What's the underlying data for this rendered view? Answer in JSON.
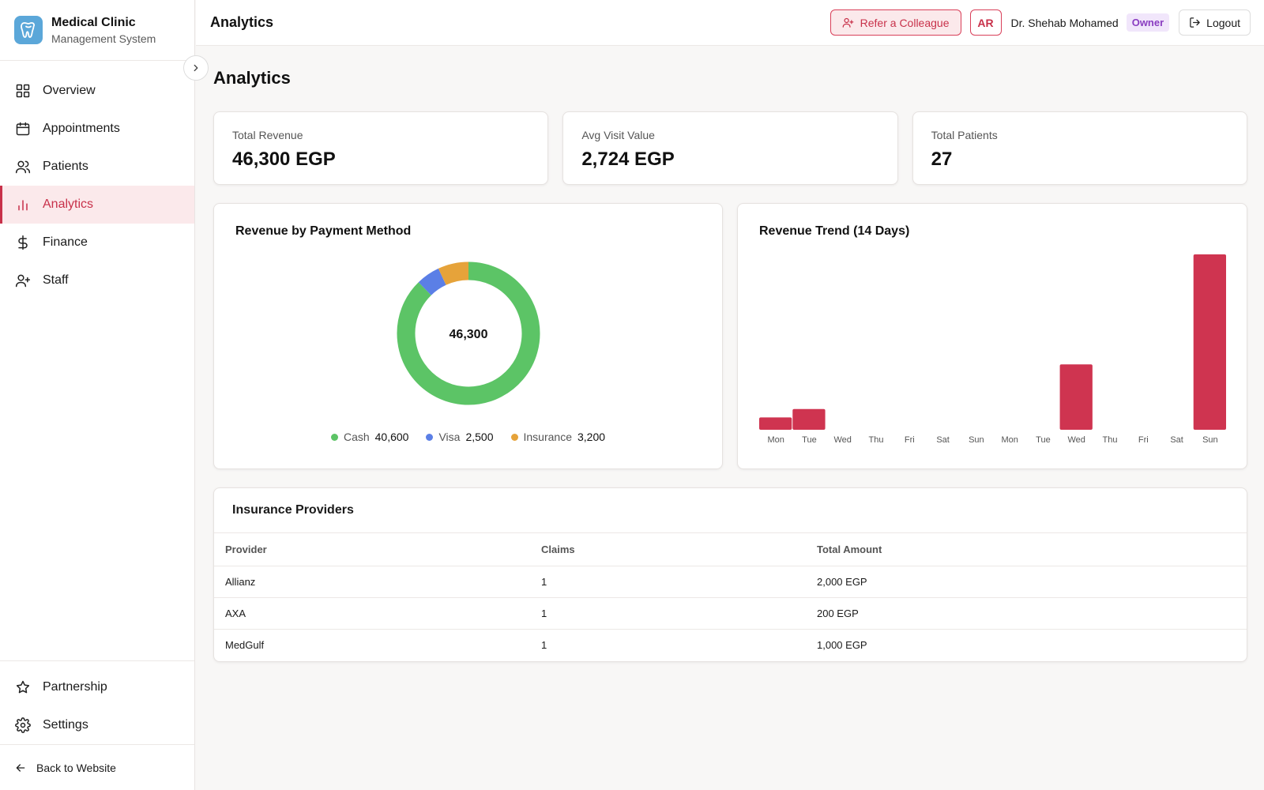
{
  "brand": {
    "title": "Medical Clinic",
    "subtitle": "Management System",
    "logo_color": "#5ba7d9"
  },
  "sidebar": {
    "items": [
      {
        "label": "Overview",
        "icon": "grid-icon"
      },
      {
        "label": "Appointments",
        "icon": "calendar-icon"
      },
      {
        "label": "Patients",
        "icon": "users-icon"
      },
      {
        "label": "Analytics",
        "icon": "bar-chart-icon",
        "active": true
      },
      {
        "label": "Finance",
        "icon": "dollar-icon"
      },
      {
        "label": "Staff",
        "icon": "user-plus-icon"
      }
    ],
    "bottom_items": [
      {
        "label": "Partnership",
        "icon": "star-icon"
      },
      {
        "label": "Settings",
        "icon": "gear-icon"
      }
    ],
    "back_label": "Back to Website"
  },
  "header": {
    "title": "Analytics",
    "refer_label": "Refer a Colleague",
    "lang_label": "AR",
    "user_name": "Dr. Shehab Mohamed",
    "role": "Owner",
    "logout_label": "Logout"
  },
  "page": {
    "title": "Analytics"
  },
  "stats": [
    {
      "label": "Total Revenue",
      "value": "46,300 EGP"
    },
    {
      "label": "Avg Visit Value",
      "value": "2,724 EGP"
    },
    {
      "label": "Total Patients",
      "value": "27"
    }
  ],
  "colors": {
    "accent": "#c8314a",
    "cash": "#5cc466",
    "visa": "#5b7fe6",
    "insurance": "#e6a33a",
    "bar": "#cf3450"
  },
  "chart_data": [
    {
      "type": "pie",
      "title": "Revenue by Payment Method",
      "center_label": "46,300",
      "categories": [
        "Cash",
        "Visa",
        "Insurance"
      ],
      "values": [
        40600,
        2500,
        3200
      ],
      "value_labels": [
        "40,600",
        "2,500",
        "3,200"
      ],
      "legend": "bottom"
    },
    {
      "type": "bar",
      "title": "Revenue Trend (14 Days)",
      "categories": [
        "Mon",
        "Tue",
        "Wed",
        "Thu",
        "Fri",
        "Sat",
        "Sun",
        "Mon",
        "Tue",
        "Wed",
        "Thu",
        "Fri",
        "Sat",
        "Sun"
      ],
      "values": [
        1600,
        2700,
        0,
        0,
        0,
        0,
        0,
        0,
        0,
        8500,
        0,
        0,
        0,
        22800
      ],
      "ylim": [
        0,
        22800
      ],
      "grid": false
    }
  ],
  "insurance": {
    "title": "Insurance Providers",
    "columns": [
      "Provider",
      "Claims",
      "Total Amount"
    ],
    "rows": [
      [
        "Allianz",
        "1",
        "2,000 EGP"
      ],
      [
        "AXA",
        "1",
        "200 EGP"
      ],
      [
        "MedGulf",
        "1",
        "1,000 EGP"
      ]
    ]
  }
}
